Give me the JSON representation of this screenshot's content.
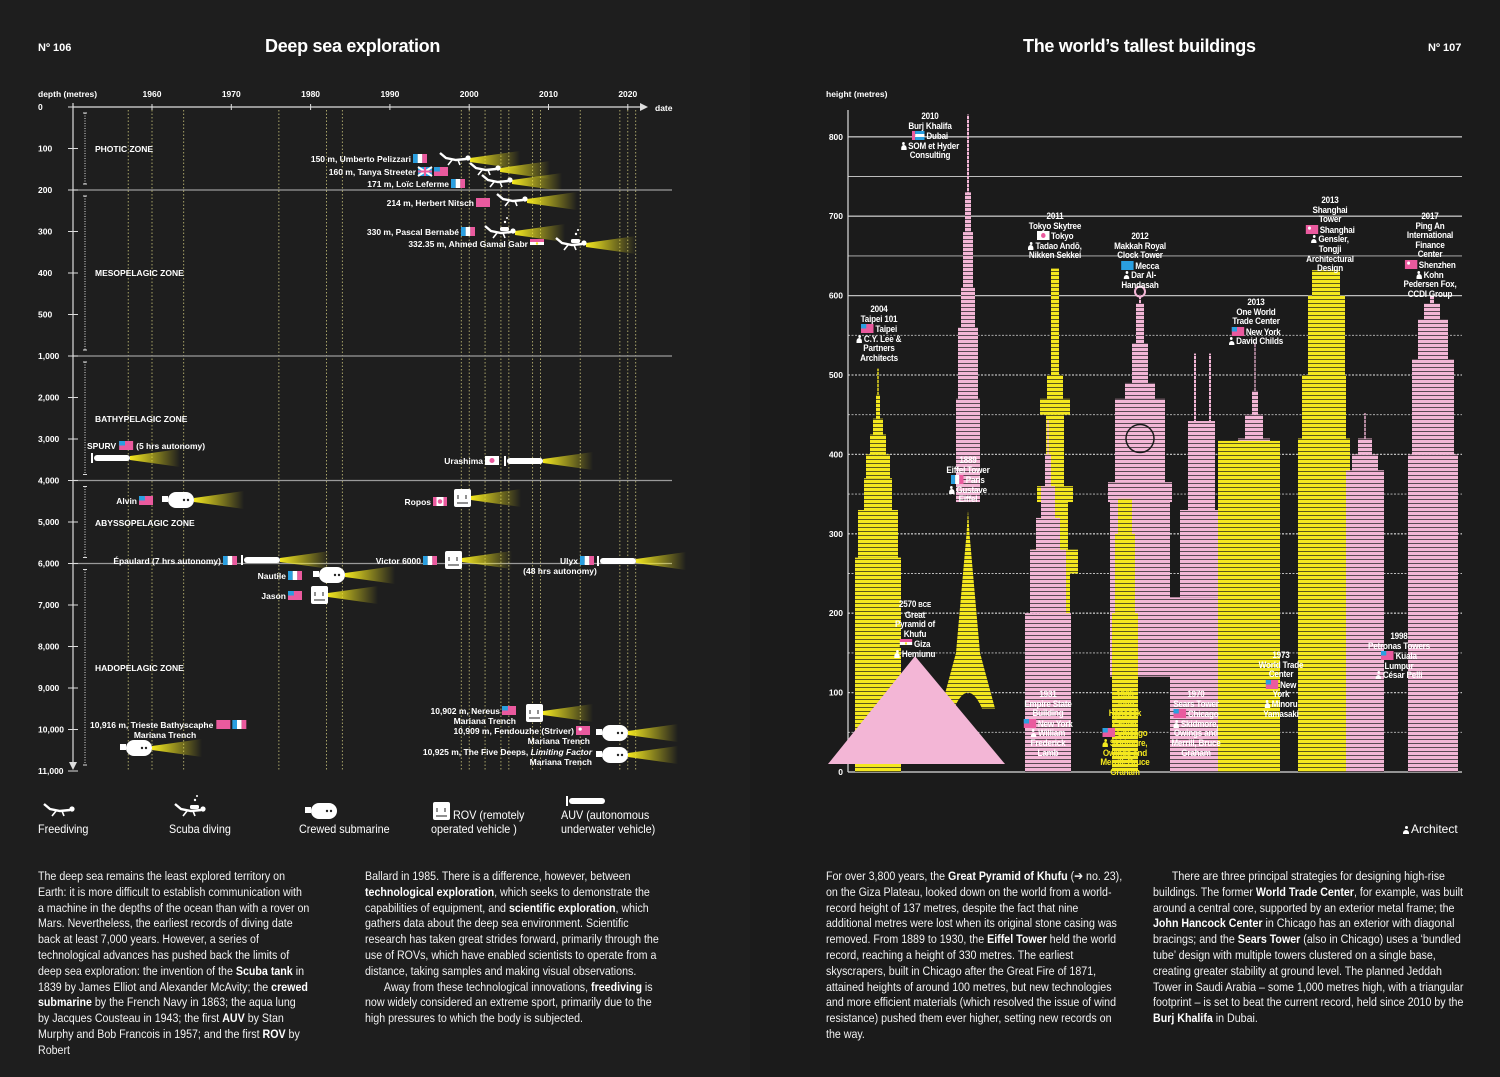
{
  "left_page": {
    "page_number": "Nº 106",
    "title": "Deep sea exploration",
    "legend": [
      {
        "icon": "freediver-icon",
        "label": "Freediving"
      },
      {
        "icon": "scuba-diver-icon",
        "label": "Scuba diving"
      },
      {
        "icon": "crewed-submarine-icon",
        "label": "Crewed submarine"
      },
      {
        "icon": "rov-icon",
        "label": "ROV (remotely",
        "label2": "operated vehicle )"
      },
      {
        "icon": "auv-icon",
        "label": "AUV (autonomous",
        "label2": "underwater vehicle)"
      }
    ],
    "columns": [
      [
        [
          {
            "t": "The deep sea remains the least explored territory on Earth: it is more difficult to establish communication with a machine in the depths of the ocean than with a rover on Mars. Nevertheless, the earliest records of diving date back at least 7,000 years. However, a series of technological advances has pushed back the limits of deep sea exploration: the invention of the "
          },
          {
            "t": "Scuba tank",
            "b": true
          },
          {
            "t": " in 1839 by James Elliot and Alexander McAvity; the "
          },
          {
            "t": "crewed submarine",
            "b": true
          },
          {
            "t": " by the French Navy in 1863; the aqua lung by Jacques Cousteau in 1943; the first "
          },
          {
            "t": "AUV",
            "b": true
          },
          {
            "t": " by Stan Murphy and Bob Francois in 1957; and the first "
          },
          {
            "t": "ROV",
            "b": true
          },
          {
            "t": " by Robert"
          }
        ]
      ],
      [
        [
          {
            "t": "Ballard in 1985. There is a difference, however, between "
          },
          {
            "t": "technological exploration",
            "b": true
          },
          {
            "t": ", which seeks to demonstrate the capabilities of equipment, and "
          },
          {
            "t": "scientific exploration",
            "b": true
          },
          {
            "t": ", which gathers data about the deep sea environment. Scientific research has taken great strides forward, primarily through the use of ROVs, which have enabled scientists to operate from a distance, taking samples and making visual observations."
          }
        ],
        [
          {
            "t": "Away from these technological innovations, "
          },
          {
            "t": "freediving",
            "b": true
          },
          {
            "t": " is now widely considered an extreme sport, primarily due to the high pressures to which the body is subjected."
          }
        ]
      ]
    ]
  },
  "right_page": {
    "page_number": "Nº 107",
    "title": "The world’s tallest buildings",
    "architect_note": "Architect",
    "columns": [
      [
        [
          {
            "t": "For over 3,800 years, the "
          },
          {
            "t": "Great Pyramid of Khufu",
            "b": true
          },
          {
            "t": " (➔ no. 23), on the Giza Plateau, looked down on the world from a world-record height of 137 metres, despite the fact that nine additional metres were lost when its original stone casing was removed. From 1889 to 1930, the "
          },
          {
            "t": "Eiffel Tower",
            "b": true
          },
          {
            "t": " held the world record, reaching a height of 330 metres. The earliest skyscrapers, built in Chicago after the Great Fire of 1871, attained heights of around 100 metres, but new technologies and more efficient materials (which resolved the issue of wind resistance) pushed them ever higher, setting new records on the way."
          }
        ]
      ],
      [
        [
          {
            "t": "There are three principal strategies for designing high-rise buildings. The former "
          },
          {
            "t": "World Trade Center",
            "b": true
          },
          {
            "t": ", for example, was built around a central core, supported by an exterior metal frame; the "
          },
          {
            "t": "John Hancock Center",
            "b": true
          },
          {
            "t": " in Chicago has an exterior with diagonal bracings; and the "
          },
          {
            "t": "Sears Tower",
            "b": true
          },
          {
            "t": " (also in Chicago) uses a ‘bundled tube’ design with multiple towers clustered on a single base, creating greater stability at ground level. The planned Jeddah Tower in Saudi Arabia – some 1,000 metres high, with a triangular footprint – is set to beat the current record, held since 2010 by the "
          },
          {
            "t": "Burj Khalifa",
            "b": true
          },
          {
            "t": " in Dubai."
          }
        ]
      ]
    ]
  },
  "colors": {
    "background": "#1d1d1d",
    "yellow": "#f4e81f",
    "pink_light": "#f3b6d6",
    "pink_flag": "#ea5a9e",
    "blue_flag": "#2a9fe0",
    "white": "#ffffff"
  },
  "chart_data": [
    {
      "type": "scatter",
      "xlabel": "date",
      "ylabel": "depth (metres)",
      "x_ticks": [
        "1960",
        "1970",
        "1980",
        "1990",
        "2000",
        "2010",
        "2020"
      ],
      "y_ticks": [
        "0",
        "100",
        "200",
        "300",
        "400",
        "500",
        "1,000",
        "2,000",
        "3,000",
        "4,000",
        "5,000",
        "6,000",
        "7,000",
        "8,000",
        "9,000",
        "10,000",
        "11,000"
      ],
      "y_scale": "piecewise (100 m steps to 500, then 1,000 m steps)",
      "xlim": [
        1950,
        2025
      ],
      "ylim": [
        0,
        11000
      ],
      "zones": [
        {
          "label": "PHOTIC ZONE",
          "from": 0,
          "to": 200
        },
        {
          "label": "MESOPELAGIC ZONE",
          "from": 200,
          "to": 1000
        },
        {
          "label": "BATHYPELAGIC ZONE",
          "from": 1000,
          "to": 4000
        },
        {
          "label": "ABYSSOPELAGIC ZONE",
          "from": 4000,
          "to": 6000
        },
        {
          "label": "HADOPELAGIC ZONE",
          "from": 6000,
          "to": 11000
        }
      ],
      "records": [
        {
          "type": "freediving",
          "label": "150 m, Umberto Pelizzari",
          "depth": 150,
          "year": 1999,
          "flags": [
            "fr"
          ]
        },
        {
          "type": "freediving",
          "label": "160 m, Tanya Streeter",
          "depth": 160,
          "year": 2002,
          "flags": [
            "uk",
            "us"
          ]
        },
        {
          "type": "freediving",
          "label": "171 m, Loïc Leferme",
          "depth": 171,
          "year": 2004,
          "flags": [
            "fr"
          ]
        },
        {
          "type": "freediving",
          "label": "214 m, Herbert Nitsch",
          "depth": 214,
          "year": 2008,
          "flags": [
            "at"
          ]
        },
        {
          "type": "scuba",
          "label": "330 m, Pascal Bernabé",
          "depth": 330,
          "year": 2005,
          "flags": [
            "fr"
          ]
        },
        {
          "type": "scuba",
          "label": "332.35 m, Ahmed Gamal Gabr",
          "depth": 332.35,
          "year": 2014,
          "flags": [
            "eg"
          ]
        },
        {
          "type": "auv",
          "label": "SPURV",
          "suffix": "(5 hrs autonomy)",
          "depth": 3600,
          "year": 1957,
          "flags": [
            "us"
          ]
        },
        {
          "type": "auv",
          "label": "Urashima",
          "depth": 3500,
          "year": 2009,
          "flags": [
            "jp"
          ]
        },
        {
          "type": "crewed",
          "label": "Alvin",
          "depth": 4450,
          "year": 1964,
          "flags": [
            "us"
          ]
        },
        {
          "type": "rov",
          "label": "Ropos",
          "depth": 4450,
          "year": 2000,
          "flags": [
            "ca"
          ]
        },
        {
          "type": "auv",
          "label": "Épaulard (7 hrs autonomy)",
          "depth": 6000,
          "year": 1976,
          "flags": [
            "fr"
          ]
        },
        {
          "type": "rov",
          "label": "Victor 6000",
          "depth": 6000,
          "year": 1999,
          "flags": [
            "fr"
          ]
        },
        {
          "type": "auv",
          "label": "Ulyx",
          "sub": "(48 hrs autonomy)",
          "depth": 6000,
          "year": 2021,
          "flags": [
            "fr"
          ]
        },
        {
          "type": "crewed",
          "label": "Nautile",
          "depth": 6250,
          "year": 1984,
          "flags": [
            "fr"
          ]
        },
        {
          "type": "rov",
          "label": "Jason",
          "depth": 6750,
          "year": 1982,
          "flags": [
            "us"
          ]
        },
        {
          "type": "crewed",
          "label": "10,916 m, Trieste Bathyscaphe",
          "sub": "Mariana Trench",
          "depth": 10916,
          "year": 1960,
          "flags": [
            "ch",
            "it"
          ]
        },
        {
          "type": "rov",
          "label": "10,902 m, Nereus",
          "sub": "Mariana Trench",
          "depth": 10902,
          "year": 2009,
          "flags": [
            "us"
          ]
        },
        {
          "type": "crewed",
          "label": "10,909 m, Fendouzhe (Striver)",
          "sub": "Mariana Trench",
          "depth": 10909,
          "year": 2020,
          "flags": [
            "cn"
          ]
        },
        {
          "type": "crewed",
          "label": "10,925 m, The Five Deeps, ",
          "label_italic": "Limiting Factor",
          "sub": "Mariana Trench",
          "depth": 10925,
          "year": 2019,
          "flags": []
        }
      ]
    },
    {
      "type": "bar",
      "ylabel": "height (metres)",
      "y_ticks": [
        "0",
        "100",
        "200",
        "300",
        "400",
        "500",
        "600",
        "700",
        "800"
      ],
      "ylim": [
        0,
        850
      ],
      "grid": true,
      "buildings": [
        {
          "id": "pyramid",
          "year": "2570",
          "year_suffix": "BCE",
          "name": "Great Pyramid of Khufu",
          "city": "Giza",
          "flag": "eg",
          "architect": "Hemiunu",
          "height": 146,
          "color": "pink"
        },
        {
          "id": "eiffel",
          "year": "1889",
          "name": "Eiffel Tower",
          "city": "Paris",
          "flag": "fr",
          "architect": "Gustave Eiffel",
          "height": 330,
          "color": "yellow"
        },
        {
          "id": "burj",
          "year": "2010",
          "name": "Burj Khalifa",
          "city": "Dubai",
          "flag": "ae",
          "architect": "SOM et Hyder Consulting",
          "height": 828,
          "color": "pink"
        },
        {
          "id": "taipei",
          "year": "2004",
          "name": "Taipei 101",
          "city": "Taipei",
          "flag": "tw",
          "architect": "C.Y. Lee & Partners Architects",
          "height": 508,
          "color": "yellow"
        },
        {
          "id": "skytree",
          "year": "2011",
          "name": "Tokyo Skytree",
          "city": "Tokyo",
          "flag": "jp",
          "architect": "Tadao Andō, Nikken Sekkei",
          "height": 634,
          "color": "yellow"
        },
        {
          "id": "empire",
          "year": "1931",
          "name": "Empire State Building",
          "city": "New York",
          "flag": "us",
          "architect": "William Frederick Lamb",
          "height": 443,
          "color": "pink"
        },
        {
          "id": "makkah",
          "year": "2012",
          "name": "Makkah Royal Clock Tower",
          "city": "Mecca",
          "flag": "sa",
          "architect": "Dar Al-Handasah",
          "height": 601,
          "color": "pink"
        },
        {
          "id": "hancock",
          "year": "1965",
          "name": "John Hancock Center",
          "city": "Chicago",
          "flag": "us",
          "architect": "Skidmore, Owings and Merrill, Bruce Graham",
          "height": 344,
          "color": "yellow"
        },
        {
          "id": "sears",
          "year": "1970",
          "name": "Sears Tower",
          "city": "Chicago",
          "flag": "us",
          "architect": "Skidmore, Owings and Merrill, Bruce Graham",
          "height": 442,
          "color": "pink"
        },
        {
          "id": "onewtc",
          "year": "2013",
          "name": "One World Trade Center",
          "city": "New York",
          "flag": "us",
          "architect": "David Childs",
          "height": 541,
          "color": "pink"
        },
        {
          "id": "wtc",
          "year": "1973",
          "name": "World Trade Center",
          "city": "New York",
          "flag": "us",
          "architect": "Minoru Yamasaki",
          "height": 417,
          "color": "yellow"
        },
        {
          "id": "shanghai",
          "year": "2013",
          "name": "Shanghai Tower",
          "city": "Shanghai",
          "flag": "cn",
          "architect": "Gensler, Tongji Architectural Design",
          "height": 632,
          "color": "yellow"
        },
        {
          "id": "petronas",
          "year": "1998",
          "name": "Petronas Towers",
          "city": "Kuala Lumpur",
          "flag": "my",
          "architect": "César Pelli",
          "height": 452,
          "color": "pink"
        },
        {
          "id": "pingan",
          "year": "2017",
          "name": "Ping An International Finance Center",
          "city": "Shenzhen",
          "flag": "cn",
          "architect": "Kohn Pedersen Fox, CCDI Group",
          "height": 599,
          "color": "pink"
        }
      ]
    }
  ]
}
